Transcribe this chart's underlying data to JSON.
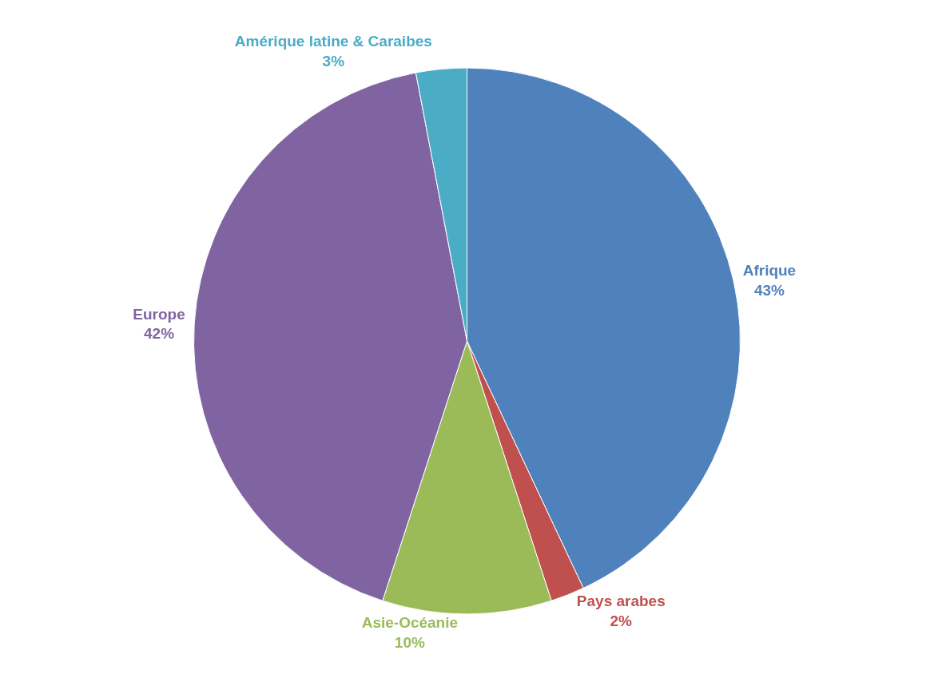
{
  "chart_data": {
    "type": "pie",
    "categories": [
      "Afrique",
      "Pays arabes",
      "Asie-Océanie",
      "Europe",
      "Amérique latine & Caraibes"
    ],
    "values": [
      43,
      2,
      10,
      42,
      3
    ],
    "value_labels": [
      "43%",
      "2%",
      "10%",
      "42%",
      "3%"
    ],
    "colors": [
      "#4f81bd",
      "#c0504d",
      "#9bbb59",
      "#8064a2",
      "#4bacc6"
    ],
    "legend": false
  }
}
